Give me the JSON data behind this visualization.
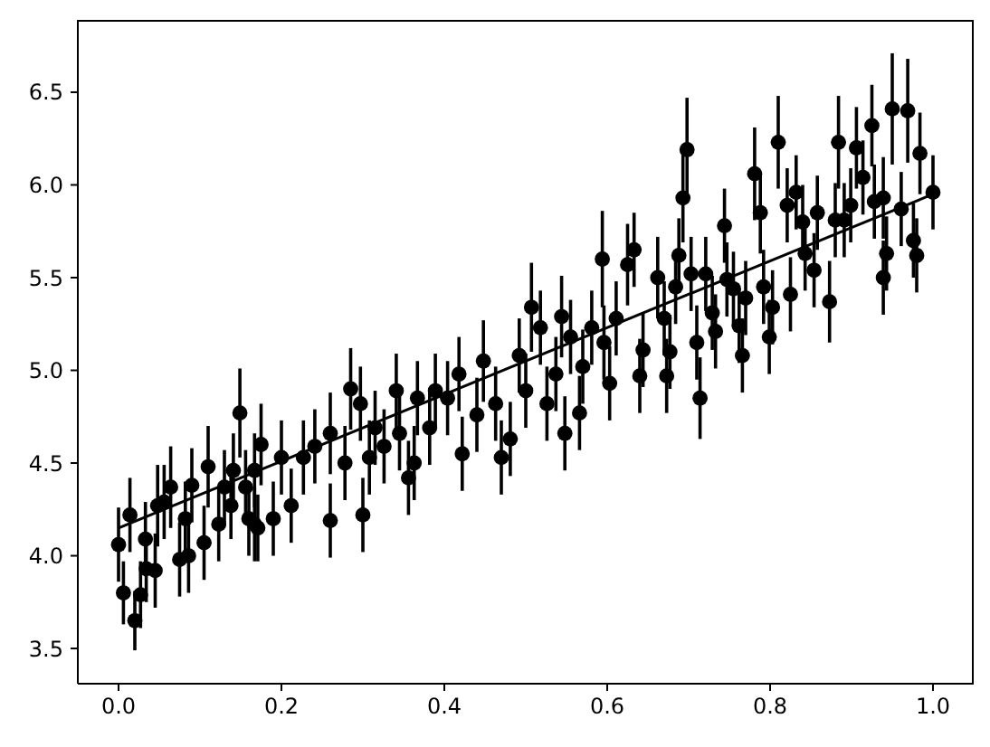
{
  "chart_data": {
    "type": "scatter",
    "marker": "circle",
    "xlim": [
      -0.05,
      1.05
    ],
    "xticks": [
      {
        "value": 0,
        "label": "0.0"
      },
      0.2,
      0.4,
      0.6,
      0.8,
      {
        "value": 1,
        "label": "1.0"
      }
    ],
    "ylim": [
      3.31,
      6.89
    ],
    "yticks": [
      3.5,
      {
        "value": 4,
        "label": "4.0"
      },
      4.5,
      {
        "value": 5,
        "label": "5.0"
      },
      5.5,
      {
        "value": 6,
        "label": "6.0"
      },
      6.5
    ],
    "series": [
      {
        "type": "scatter",
        "color": "#000000",
        "x": [
          0,
          0.006,
          0.014,
          0.02,
          0.027,
          0.033,
          0.034,
          0.045,
          0.048,
          0.056,
          0.064,
          0.075,
          0.082,
          0.086,
          0.09,
          0.105,
          0.11,
          0.123,
          0.13,
          0.138,
          0.141,
          0.149,
          0.156,
          0.16,
          0.167,
          0.167,
          0.171,
          0.175,
          0.19,
          0.2,
          0.212,
          0.227,
          0.241,
          0.26,
          0.26,
          0.278,
          0.285,
          0.297,
          0.3,
          0.308,
          0.315,
          0.326,
          0.341,
          0.345,
          0.356,
          0.363,
          0.367,
          0.382,
          0.389,
          0.404,
          0.418,
          0.422,
          0.44,
          0.448,
          0.463,
          0.47,
          0.481,
          0.492,
          0.5,
          0.507,
          0.518,
          0.526,
          0.537,
          0.544,
          0.548,
          0.555,
          0.566,
          0.57,
          0.581,
          0.594,
          0.596,
          0.603,
          0.611,
          0.625,
          0.633,
          0.64,
          0.644,
          0.662,
          0.67,
          0.673,
          0.677,
          0.684,
          0.688,
          0.693,
          0.698,
          0.703,
          0.71,
          0.714,
          0.721,
          0.729,
          0.733,
          0.744,
          0.747,
          0.755,
          0.762,
          0.766,
          0.77,
          0.781,
          0.788,
          0.792,
          0.799,
          0.803,
          0.81,
          0.821,
          0.825,
          0.832,
          0.84,
          0.843,
          0.854,
          0.858,
          0.873,
          0.88,
          0.884,
          0.891,
          0.899,
          0.906,
          0.914,
          0.925,
          0.928,
          0.939,
          0.939,
          0.943,
          0.95,
          0.961,
          0.969,
          0.976,
          0.98,
          0.984,
          1.0
        ],
        "values": [
          4.06,
          3.8,
          4.22,
          3.65,
          3.79,
          4.09,
          3.93,
          3.92,
          4.27,
          4.29,
          4.37,
          3.98,
          4.2,
          4.0,
          4.38,
          4.07,
          4.48,
          4.17,
          4.37,
          4.27,
          4.46,
          4.77,
          4.37,
          4.2,
          4.46,
          4.17,
          4.15,
          4.6,
          4.2,
          4.53,
          4.27,
          4.53,
          4.59,
          4.19,
          4.66,
          4.5,
          4.9,
          4.82,
          4.22,
          4.53,
          4.69,
          4.59,
          4.89,
          4.66,
          4.42,
          4.5,
          4.85,
          4.69,
          4.89,
          4.85,
          4.98,
          4.55,
          4.76,
          5.05,
          4.82,
          4.53,
          4.63,
          5.08,
          4.89,
          5.34,
          5.23,
          4.82,
          4.98,
          5.29,
          4.66,
          5.18,
          4.77,
          5.02,
          5.23,
          5.6,
          5.15,
          4.93,
          5.28,
          5.57,
          5.65,
          4.97,
          5.11,
          5.5,
          5.28,
          4.97,
          5.1,
          5.45,
          5.62,
          5.93,
          6.19,
          5.52,
          5.15,
          4.85,
          5.52,
          5.31,
          5.21,
          5.78,
          5.49,
          5.44,
          5.24,
          5.08,
          5.39,
          6.06,
          5.85,
          5.45,
          5.18,
          5.34,
          6.23,
          5.89,
          5.41,
          5.96,
          5.8,
          5.63,
          5.54,
          5.85,
          5.37,
          5.81,
          6.23,
          5.81,
          5.89,
          6.2,
          6.04,
          6.32,
          5.91,
          5.93,
          5.5,
          5.63,
          6.41,
          5.87,
          6.4,
          5.7,
          5.62,
          6.17,
          5.96
        ],
        "errors": [
          0.2,
          0.17,
          0.2,
          0.16,
          0.18,
          0.2,
          0.18,
          0.2,
          0.22,
          0.2,
          0.22,
          0.2,
          0.2,
          0.2,
          0.2,
          0.2,
          0.22,
          0.2,
          0.2,
          0.18,
          0.2,
          0.24,
          0.2,
          0.2,
          0.2,
          0.2,
          0.18,
          0.22,
          0.2,
          0.2,
          0.2,
          0.2,
          0.2,
          0.2,
          0.22,
          0.2,
          0.22,
          0.2,
          0.2,
          0.2,
          0.2,
          0.2,
          0.2,
          0.2,
          0.2,
          0.2,
          0.2,
          0.2,
          0.2,
          0.2,
          0.2,
          0.2,
          0.2,
          0.22,
          0.2,
          0.2,
          0.2,
          0.2,
          0.2,
          0.24,
          0.2,
          0.2,
          0.2,
          0.22,
          0.2,
          0.2,
          0.2,
          0.2,
          0.2,
          0.26,
          0.2,
          0.2,
          0.2,
          0.22,
          0.2,
          0.2,
          0.2,
          0.22,
          0.2,
          0.2,
          0.2,
          0.2,
          0.2,
          0.24,
          0.28,
          0.2,
          0.2,
          0.22,
          0.2,
          0.2,
          0.2,
          0.2,
          0.2,
          0.2,
          0.2,
          0.2,
          0.2,
          0.25,
          0.22,
          0.2,
          0.2,
          0.2,
          0.25,
          0.2,
          0.2,
          0.2,
          0.2,
          0.2,
          0.2,
          0.2,
          0.22,
          0.2,
          0.25,
          0.2,
          0.2,
          0.22,
          0.2,
          0.22,
          0.2,
          0.22,
          0.2,
          0.2,
          0.3,
          0.2,
          0.28,
          0.2,
          0.2,
          0.22,
          0.2
        ]
      },
      {
        "type": "line",
        "color": "#000000",
        "x": [
          0,
          1
        ],
        "values": [
          4.15,
          5.95
        ],
        "line_style": "solid",
        "marker": "none"
      }
    ]
  }
}
